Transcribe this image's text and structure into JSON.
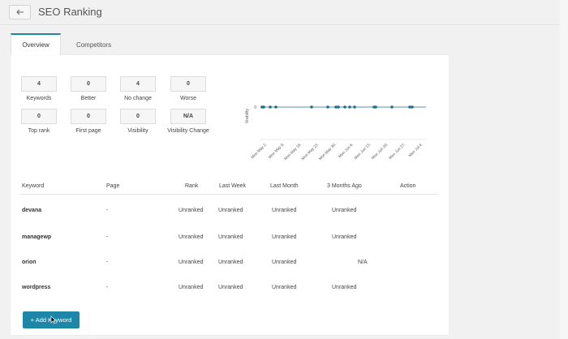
{
  "header": {
    "title": "SEO Ranking",
    "back_icon": "arrow-left-icon"
  },
  "tabs": [
    {
      "label": "Overview",
      "active": true
    },
    {
      "label": "Competitors",
      "active": false
    }
  ],
  "stats": [
    {
      "value": "4",
      "label": "Keywords"
    },
    {
      "value": "0",
      "label": "Better"
    },
    {
      "value": "4",
      "label": "No change"
    },
    {
      "value": "0",
      "label": "Worse"
    },
    {
      "value": "0",
      "label": "Top rank"
    },
    {
      "value": "0",
      "label": "First page"
    },
    {
      "value": "0",
      "label": "Visibility"
    },
    {
      "value": "N/A",
      "label": "Visibility Change"
    }
  ],
  "chart_data": {
    "type": "line",
    "ylabel": "Visibility",
    "y_ticks": [
      "0"
    ],
    "x_ticks": [
      "Mon May 2.",
      "Mon May 9.",
      "Mon May 16.",
      "Mon May 23.",
      "Mon May 30.",
      "Mon Jun 6.",
      "Mon Jun 13.",
      "Mon Jun 20.",
      "Mon Jun 27.",
      "Mon Jul 4."
    ],
    "series": [
      {
        "values": [
          0,
          0,
          0,
          0,
          0,
          0,
          0,
          0,
          0,
          0,
          0,
          0,
          0,
          0,
          0,
          0
        ]
      }
    ],
    "color": "#1e6f8a"
  },
  "table": {
    "columns": [
      "Keyword",
      "Page",
      "Rank",
      "Last Week",
      "Last Month",
      "3 Months Ago",
      "Action"
    ],
    "rows": [
      {
        "keyword": "devana",
        "page": "-",
        "rank": "Unranked",
        "last_week": "Unranked",
        "last_month": "Unranked",
        "three_months": "Unranked"
      },
      {
        "keyword": "managewp",
        "page": "-",
        "rank": "Unranked",
        "last_week": "Unranked",
        "last_month": "Unranked",
        "three_months": "Unranked"
      },
      {
        "keyword": "orion",
        "page": "-",
        "rank": "Unranked",
        "last_week": "Unranked",
        "last_month": "Unranked",
        "three_months": "N/A"
      },
      {
        "keyword": "wordpress",
        "page": "-",
        "rank": "Unranked",
        "last_week": "Unranked",
        "last_month": "Unranked",
        "three_months": "Unranked"
      }
    ]
  },
  "actions": {
    "add_keyword": "+ Add Keyword"
  },
  "colors": {
    "accent": "#1e87a8"
  }
}
